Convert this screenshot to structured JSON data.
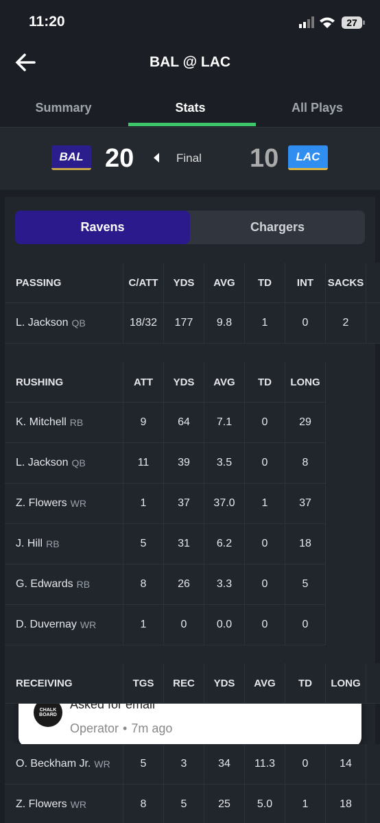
{
  "status": {
    "time": "11:20",
    "battery": "27"
  },
  "header": {
    "title": "BAL @ LAC"
  },
  "tabs": [
    "Summary",
    "Stats",
    "All Plays"
  ],
  "score": {
    "away_abbr": "BAL",
    "away_score": "20",
    "state": "Final",
    "home_score": "10",
    "home_abbr": "LAC"
  },
  "team_toggle": [
    "Ravens",
    "Chargers"
  ],
  "passing": {
    "headers": [
      "PASSING",
      "C/ATT",
      "YDS",
      "AVG",
      "TD",
      "INT",
      "SACKS"
    ],
    "rows": [
      {
        "name": "L. Jackson",
        "pos": "QB",
        "stats": [
          "18/32",
          "177",
          "9.8",
          "1",
          "0",
          "2"
        ]
      }
    ]
  },
  "rushing": {
    "headers": [
      "RUSHING",
      "ATT",
      "YDS",
      "AVG",
      "TD",
      "LONG"
    ],
    "rows": [
      {
        "name": "K. Mitchell",
        "pos": "RB",
        "stats": [
          "9",
          "64",
          "7.1",
          "0",
          "29"
        ]
      },
      {
        "name": "L. Jackson",
        "pos": "QB",
        "stats": [
          "11",
          "39",
          "3.5",
          "0",
          "8"
        ]
      },
      {
        "name": "Z. Flowers",
        "pos": "WR",
        "stats": [
          "1",
          "37",
          "37.0",
          "1",
          "37"
        ]
      },
      {
        "name": "J. Hill",
        "pos": "RB",
        "stats": [
          "5",
          "31",
          "6.2",
          "0",
          "18"
        ]
      },
      {
        "name": "G. Edwards",
        "pos": "RB",
        "stats": [
          "8",
          "26",
          "3.3",
          "0",
          "5"
        ]
      },
      {
        "name": "D. Duvernay",
        "pos": "WR",
        "stats": [
          "1",
          "0",
          "0.0",
          "0",
          "0"
        ]
      }
    ]
  },
  "receiving": {
    "headers": [
      "RECEIVING",
      "TGS",
      "REC",
      "YDS",
      "AVG",
      "TD",
      "LONG"
    ],
    "rows": [
      {
        "name": "O. Beckham Jr.",
        "pos": "WR",
        "stats": [
          "5",
          "3",
          "34",
          "11.3",
          "0",
          "14"
        ]
      },
      {
        "name": "Z. Flowers",
        "pos": "WR",
        "stats": [
          "8",
          "5",
          "25",
          "5.0",
          "1",
          "18"
        ]
      }
    ]
  },
  "notification": {
    "icon": "CHALK BOARD",
    "title": "Asked for email",
    "source": "Operator",
    "time": "7m ago"
  }
}
